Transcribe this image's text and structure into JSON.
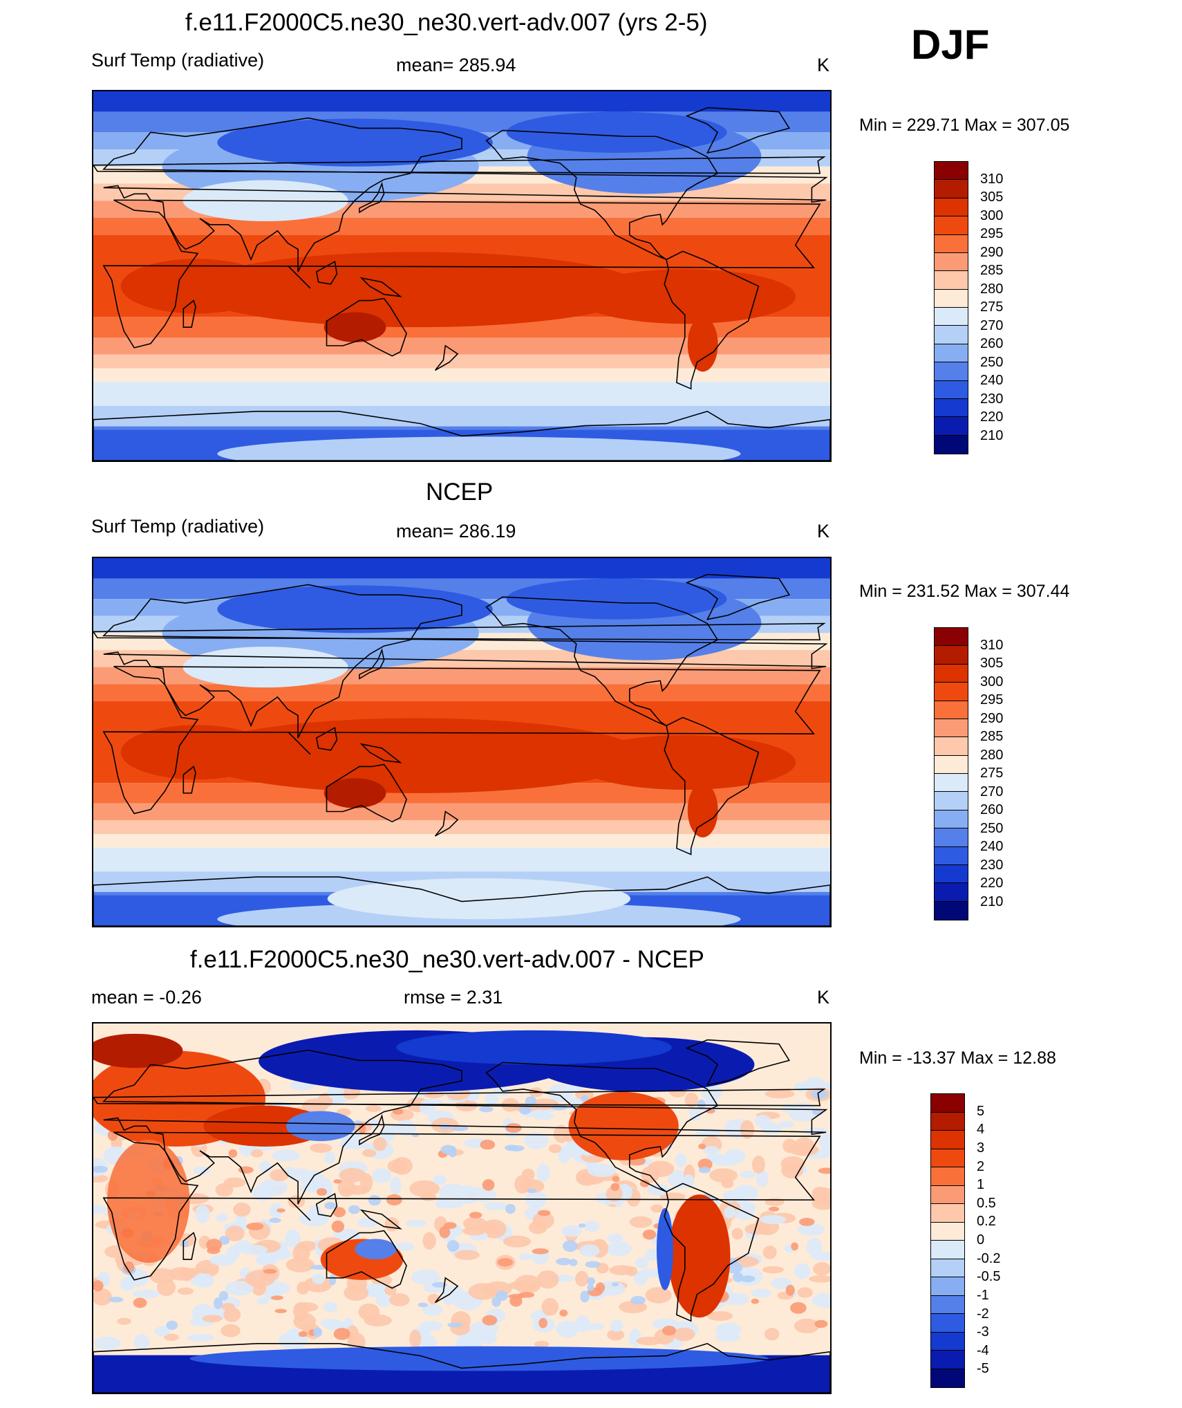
{
  "season": "DJF",
  "panels": [
    {
      "title": "f.e11.F2000C5.ne30_ne30.vert-adv.007 (yrs 2-5)",
      "left": "Surf Temp (radiative)",
      "center": "mean= 285.94",
      "right": "K",
      "minmax": "Min = 229.71 Max = 307.05",
      "levels": [
        "310",
        "305",
        "300",
        "295",
        "290",
        "285",
        "280",
        "275",
        "270",
        "260",
        "250",
        "240",
        "230",
        "220",
        "210"
      ],
      "colors": [
        "#8b0000",
        "#b41c00",
        "#dc3300",
        "#ee4a10",
        "#f9703a",
        "#fb9b75",
        "#fdc8ab",
        "#fdebd8",
        "#dbeaf9",
        "#b5d0f7",
        "#87aef2",
        "#5580ea",
        "#2e5be2",
        "#143ad0",
        "#0a1cb0",
        "#000878"
      ],
      "map_type": "model"
    },
    {
      "title": "NCEP",
      "left": "Surf Temp (radiative)",
      "center": "mean= 286.19",
      "right": "K",
      "minmax": "Min = 231.52 Max = 307.44",
      "levels": [
        "310",
        "305",
        "300",
        "295",
        "290",
        "285",
        "280",
        "275",
        "270",
        "260",
        "250",
        "240",
        "230",
        "220",
        "210"
      ],
      "colors": [
        "#8b0000",
        "#b41c00",
        "#dc3300",
        "#ee4a10",
        "#f9703a",
        "#fb9b75",
        "#fdc8ab",
        "#fdebd8",
        "#dbeaf9",
        "#b5d0f7",
        "#87aef2",
        "#5580ea",
        "#2e5be2",
        "#143ad0",
        "#0a1cb0",
        "#000878"
      ],
      "map_type": "obs"
    },
    {
      "title": "f.e11.F2000C5.ne30_ne30.vert-adv.007 - NCEP",
      "left": "mean =  -0.26",
      "center": "rmse =   2.31",
      "right": "K",
      "minmax": "Min = -13.37 Max =  12.88",
      "levels": [
        "5",
        "4",
        "3",
        "2",
        "1",
        "0.5",
        "0.2",
        "0",
        "-0.2",
        "-0.5",
        "-1",
        "-2",
        "-3",
        "-4",
        "-5"
      ],
      "colors": [
        "#8b0000",
        "#b41c00",
        "#dc3300",
        "#ee4a10",
        "#f9703a",
        "#fb9b75",
        "#fdc8ab",
        "#fdebd8",
        "#dbeaf9",
        "#b5d0f7",
        "#87aef2",
        "#5580ea",
        "#2e5be2",
        "#143ad0",
        "#0a1cb0",
        "#000878"
      ],
      "map_type": "diff"
    }
  ]
}
